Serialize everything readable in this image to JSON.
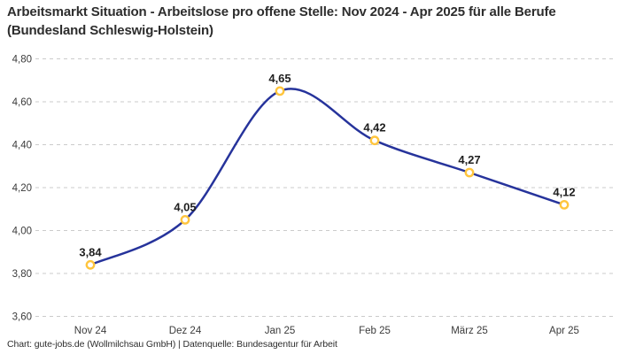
{
  "header": {
    "title": "Arbeitsmarkt Situation - Arbeitslose pro offene Stelle: Nov 2024 - Apr 2025 für alle Berufe (Bundesland Schleswig-Holstein)"
  },
  "chart_data": {
    "type": "line",
    "title": "Arbeitsmarkt Situation - Arbeitslose pro offene Stelle: Nov 2024 - Apr 2025 für alle Berufe (Bundesland Schleswig-Holstein)",
    "categories": [
      "Nov 24",
      "Dez 24",
      "Jan 25",
      "Feb 25",
      "März 25",
      "Apr 25"
    ],
    "values": [
      3.84,
      4.05,
      4.65,
      4.42,
      4.27,
      4.12
    ],
    "value_labels": [
      "3,84",
      "4,05",
      "4,65",
      "4,42",
      "4,27",
      "4,12"
    ],
    "xlabel": "",
    "ylabel": "",
    "ylim": [
      3.6,
      4.8
    ],
    "yticks": [
      3.6,
      3.8,
      4.0,
      4.2,
      4.4,
      4.6,
      4.8
    ],
    "ytick_labels": [
      "3,60",
      "3,80",
      "4,00",
      "4,20",
      "4,40",
      "4,60",
      "4,80"
    ],
    "grid": "dashed-horizontal",
    "legend": "none",
    "smooth": true,
    "colors": {
      "line": "#26339B",
      "marker_ring": "#FFC53D",
      "marker_fill": "#FFFFFF",
      "grid_line": "#CBCBCB",
      "tick_text": "#3B3B3B",
      "value_label_text": "#1F1F1F"
    }
  },
  "footer": {
    "attribution": "Chart: gute-jobs.de (Wollmilchsau GmbH) | Datenquelle: Bundesagentur für Arbeit"
  }
}
